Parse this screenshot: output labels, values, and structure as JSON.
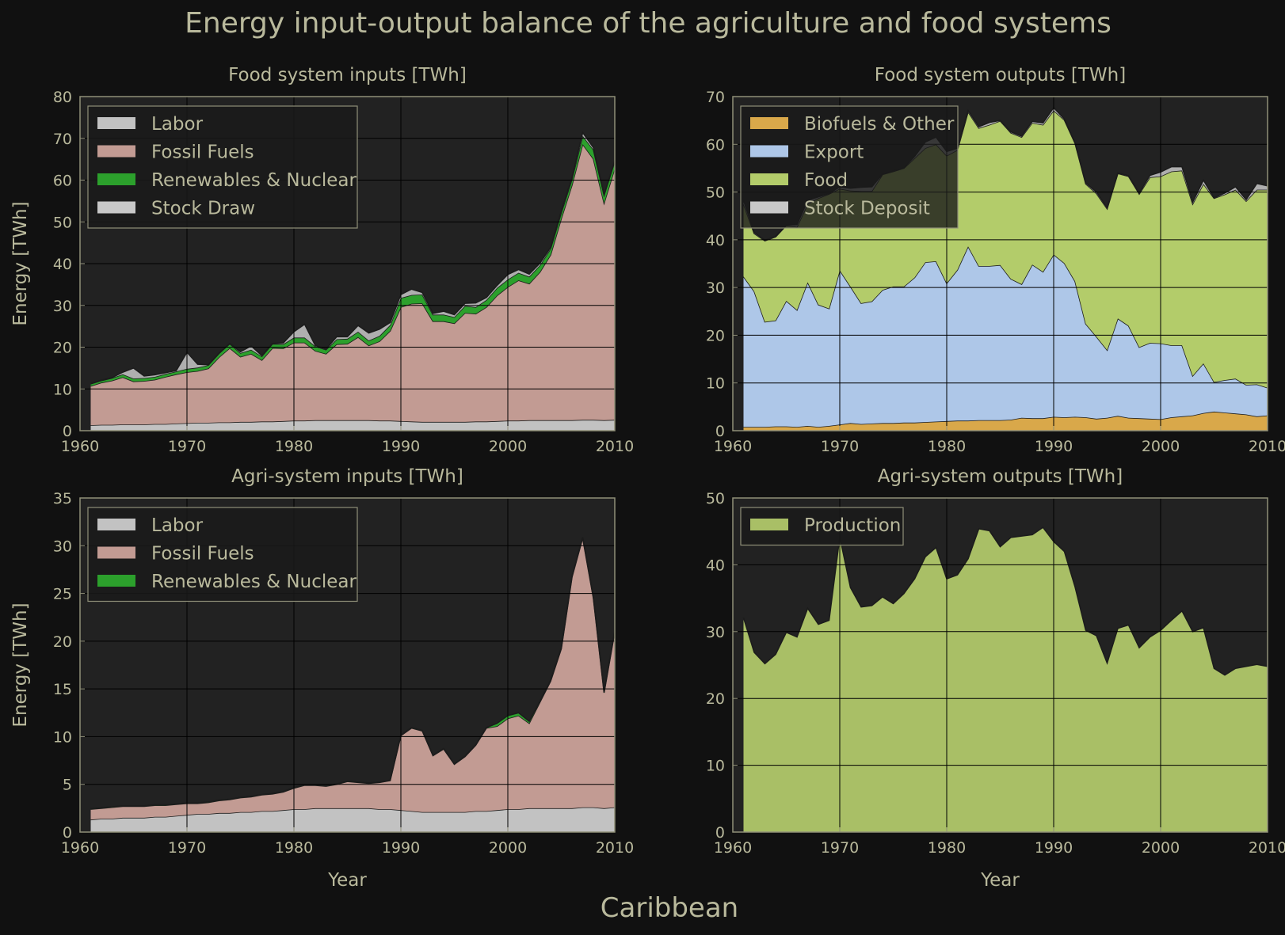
{
  "figure": {
    "title": "Energy input-output balance of the agriculture and food systems",
    "region": "Caribbean"
  },
  "colors": {
    "background": "#111111",
    "plot_bg": "#222222",
    "text": "#b9b99c",
    "spine": "#8f8f78",
    "Labor": "#c2c2c2",
    "Fossil Fuels": "#c29b93",
    "Renewables & Nuclear": "#2ca02c",
    "Stock Draw": "#c8c8c8",
    "Biofuels & Other": "#d9a84a",
    "Export": "#aec7e8",
    "Food": "#b3cc6a",
    "Stock Deposit": "#c8c8c8",
    "Production": "#a9bf66"
  },
  "chart_data": [
    {
      "type": "area",
      "title": "Food system inputs [TWh]",
      "xlabel": "",
      "ylabel": "Energy [TWh]",
      "xlim": [
        1960,
        2010
      ],
      "ylim": [
        0,
        80
      ],
      "yticks": [
        0,
        10,
        20,
        30,
        40,
        50,
        60,
        70,
        80
      ],
      "xticks": [
        1960,
        1970,
        1980,
        1990,
        2000,
        2010
      ],
      "grid": true,
      "stacked": true,
      "legend": "top-left",
      "x": [
        1961,
        1962,
        1963,
        1964,
        1965,
        1966,
        1967,
        1968,
        1969,
        1970,
        1971,
        1972,
        1973,
        1974,
        1975,
        1976,
        1977,
        1978,
        1979,
        1980,
        1981,
        1982,
        1983,
        1984,
        1985,
        1986,
        1987,
        1988,
        1989,
        1990,
        1991,
        1992,
        1993,
        1994,
        1995,
        1996,
        1997,
        1998,
        1999,
        2000,
        2001,
        2002,
        2003,
        2004,
        2005,
        2006,
        2007,
        2008,
        2009,
        2010
      ],
      "series": [
        {
          "name": "Labor",
          "values": [
            1.3,
            1.4,
            1.4,
            1.5,
            1.5,
            1.5,
            1.6,
            1.6,
            1.7,
            1.8,
            1.9,
            1.9,
            2.0,
            2.0,
            2.1,
            2.1,
            2.2,
            2.2,
            2.3,
            2.4,
            2.4,
            2.5,
            2.5,
            2.5,
            2.5,
            2.5,
            2.5,
            2.4,
            2.4,
            2.3,
            2.2,
            2.1,
            2.1,
            2.1,
            2.1,
            2.1,
            2.2,
            2.2,
            2.3,
            2.4,
            2.4,
            2.5,
            2.5,
            2.5,
            2.5,
            2.5,
            2.6,
            2.6,
            2.5,
            2.6
          ]
        },
        {
          "name": "Fossil Fuels",
          "values": [
            9.4,
            10.1,
            10.6,
            11.3,
            10.3,
            10.4,
            10.6,
            11.3,
            11.8,
            12.2,
            12.4,
            13.0,
            15.6,
            17.8,
            15.6,
            16.3,
            14.7,
            17.6,
            17.4,
            18.7,
            18.7,
            16.6,
            15.9,
            18.2,
            18.3,
            19.9,
            17.9,
            19.0,
            21.5,
            27.3,
            28.2,
            28.4,
            24.1,
            24.1,
            23.6,
            26.1,
            25.8,
            27.4,
            30.1,
            32.0,
            33.6,
            32.7,
            35.5,
            39.6,
            48.3,
            56.3,
            66.0,
            62.5,
            52.0,
            60.2
          ]
        },
        {
          "name": "Renewables & Nuclear",
          "values": [
            0.5,
            0.5,
            0.6,
            0.7,
            0.7,
            0.7,
            0.7,
            0.7,
            0.7,
            0.8,
            0.8,
            0.8,
            0.9,
            1.0,
            0.9,
            1.0,
            0.9,
            1.0,
            1.0,
            1.2,
            1.2,
            1.1,
            1.0,
            1.2,
            1.2,
            1.3,
            1.2,
            1.3,
            1.4,
            2.2,
            2.1,
            2.1,
            1.6,
            1.6,
            1.5,
            1.7,
            1.6,
            1.7,
            1.8,
            1.8,
            1.8,
            1.7,
            1.6,
            1.5,
            1.4,
            1.4,
            2.0,
            2.2,
            1.9,
            1.7
          ]
        },
        {
          "name": "Stock Draw",
          "values": [
            0.1,
            0.1,
            0.1,
            0.5,
            2.5,
            0.5,
            0.5,
            0.3,
            0.2,
            4.0,
            0.8,
            0.1,
            0.1,
            0.1,
            0.3,
            0.9,
            0.2,
            0.1,
            0.3,
            1.4,
            3.2,
            0.2,
            0.1,
            0.6,
            0.5,
            1.5,
            1.8,
            1.6,
            0.6,
            0.8,
            1.4,
            0.5,
            0.3,
            0.8,
            0.6,
            0.6,
            1.0,
            0.6,
            0.6,
            1.2,
            0.8,
            0.6,
            0.5,
            0.3,
            0.4,
            0.4,
            0.8,
            0.5,
            0.1,
            0.1
          ]
        }
      ]
    },
    {
      "type": "area",
      "title": "Food system outputs [TWh]",
      "xlabel": "",
      "ylabel": "",
      "xlim": [
        1960,
        2010
      ],
      "ylim": [
        0,
        70
      ],
      "yticks": [
        0,
        10,
        20,
        30,
        40,
        50,
        60,
        70
      ],
      "xticks": [
        1960,
        1970,
        1980,
        1990,
        2000,
        2010
      ],
      "grid": true,
      "stacked": true,
      "legend": "top-left",
      "x": [
        1961,
        1962,
        1963,
        1964,
        1965,
        1966,
        1967,
        1968,
        1969,
        1970,
        1971,
        1972,
        1973,
        1974,
        1975,
        1976,
        1977,
        1978,
        1979,
        1980,
        1981,
        1982,
        1983,
        1984,
        1985,
        1986,
        1987,
        1988,
        1989,
        1990,
        1991,
        1992,
        1993,
        1994,
        1995,
        1996,
        1997,
        1998,
        1999,
        2000,
        2001,
        2002,
        2003,
        2004,
        2005,
        2006,
        2007,
        2008,
        2009,
        2010
      ],
      "series": [
        {
          "name": "Biofuels & Other",
          "values": [
            0.8,
            0.8,
            0.8,
            0.9,
            0.9,
            0.8,
            1.0,
            0.8,
            1.0,
            1.3,
            1.6,
            1.4,
            1.5,
            1.6,
            1.6,
            1.7,
            1.7,
            1.8,
            1.9,
            2.0,
            2.1,
            2.1,
            2.2,
            2.2,
            2.2,
            2.3,
            2.7,
            2.6,
            2.6,
            2.9,
            2.8,
            2.9,
            2.8,
            2.5,
            2.7,
            3.1,
            2.7,
            2.6,
            2.5,
            2.4,
            2.8,
            3.0,
            3.2,
            3.7,
            4.0,
            3.8,
            3.6,
            3.4,
            3.0,
            3.2
          ]
        },
        {
          "name": "Export",
          "values": [
            31.5,
            28.4,
            22.0,
            22.2,
            26.3,
            24.5,
            30.1,
            25.6,
            24.6,
            32.3,
            28.6,
            25.3,
            25.6,
            27.9,
            28.6,
            28.5,
            30.4,
            33.5,
            33.6,
            28.9,
            31.6,
            36.5,
            32.3,
            32.3,
            32.5,
            29.5,
            28.0,
            32.2,
            30.7,
            34.0,
            32.3,
            28.4,
            19.6,
            17.2,
            14.2,
            20.4,
            19.3,
            14.9,
            15.9,
            15.9,
            15.1,
            14.9,
            8.3,
            10.4,
            6.2,
            6.8,
            7.3,
            6.2,
            6.7,
            5.8
          ]
        },
        {
          "name": "Food",
          "values": [
            15.2,
            12.1,
            17.0,
            17.5,
            15.8,
            17.4,
            16.4,
            22.3,
            24.0,
            17.1,
            20.1,
            23.5,
            23.1,
            24.2,
            24.1,
            24.8,
            25.0,
            23.9,
            24.5,
            26.7,
            25.1,
            28.2,
            28.9,
            29.6,
            30.2,
            30.6,
            30.8,
            29.7,
            30.8,
            30.2,
            30.0,
            28.9,
            29.3,
            30.0,
            29.6,
            30.4,
            31.3,
            32.1,
            34.7,
            35.0,
            36.4,
            36.6,
            36.0,
            37.6,
            38.5,
            38.9,
            39.6,
            38.5,
            40.8,
            41.5
          ]
        },
        {
          "name": "Stock Deposit",
          "values": [
            0.8,
            0.2,
            0.1,
            0.1,
            0.1,
            0.5,
            0.8,
            0.3,
            0.1,
            0.4,
            0.5,
            0.8,
            0.9,
            0.1,
            0.1,
            0.1,
            0.4,
            1.3,
            1.5,
            0.9,
            0.4,
            0.3,
            0.3,
            0.5,
            0.1,
            0.2,
            0.2,
            0.3,
            0.4,
            0.6,
            0.2,
            0.1,
            0.2,
            0.3,
            0.2,
            0.1,
            0.1,
            0.2,
            0.4,
            0.9,
            1.0,
            0.8,
            0.4,
            0.8,
            0.1,
            0.3,
            0.6,
            0.3,
            1.3,
            0.8
          ]
        }
      ]
    },
    {
      "type": "area",
      "title": "Agri-system inputs [TWh]",
      "xlabel": "Year",
      "ylabel": "Energy [TWh]",
      "xlim": [
        1960,
        2010
      ],
      "ylim": [
        0,
        35
      ],
      "yticks": [
        0,
        5,
        10,
        15,
        20,
        25,
        30,
        35
      ],
      "xticks": [
        1960,
        1970,
        1980,
        1990,
        2000,
        2010
      ],
      "grid": true,
      "stacked": true,
      "legend": "top-left",
      "x": [
        1961,
        1962,
        1963,
        1964,
        1965,
        1966,
        1967,
        1968,
        1969,
        1970,
        1971,
        1972,
        1973,
        1974,
        1975,
        1976,
        1977,
        1978,
        1979,
        1980,
        1981,
        1982,
        1983,
        1984,
        1985,
        1986,
        1987,
        1988,
        1989,
        1990,
        1991,
        1992,
        1993,
        1994,
        1995,
        1996,
        1997,
        1998,
        1999,
        2000,
        2001,
        2002,
        2003,
        2004,
        2005,
        2006,
        2007,
        2008,
        2009,
        2010
      ],
      "series": [
        {
          "name": "Labor",
          "values": [
            1.3,
            1.4,
            1.4,
            1.5,
            1.5,
            1.5,
            1.6,
            1.6,
            1.7,
            1.8,
            1.9,
            1.9,
            2.0,
            2.0,
            2.1,
            2.1,
            2.2,
            2.2,
            2.3,
            2.4,
            2.4,
            2.5,
            2.5,
            2.5,
            2.5,
            2.5,
            2.5,
            2.4,
            2.4,
            2.3,
            2.2,
            2.1,
            2.1,
            2.1,
            2.1,
            2.1,
            2.2,
            2.2,
            2.3,
            2.4,
            2.4,
            2.5,
            2.5,
            2.5,
            2.5,
            2.5,
            2.6,
            2.6,
            2.5,
            2.6
          ]
        },
        {
          "name": "Fossil Fuels",
          "values": [
            1.1,
            1.1,
            1.2,
            1.2,
            1.2,
            1.2,
            1.2,
            1.2,
            1.2,
            1.2,
            1.1,
            1.2,
            1.3,
            1.4,
            1.5,
            1.6,
            1.7,
            1.8,
            1.9,
            2.2,
            2.5,
            2.4,
            2.3,
            2.5,
            2.8,
            2.7,
            2.6,
            2.8,
            3.0,
            7.8,
            8.7,
            8.5,
            5.9,
            6.6,
            5.0,
            5.8,
            6.9,
            8.7,
            8.8,
            9.5,
            9.8,
            8.9,
            11.1,
            13.3,
            16.7,
            24.2,
            28.2,
            21.9,
            12.1,
            18.4
          ]
        },
        {
          "name": "Renewables & Nuclear",
          "values": [
            0.05,
            0.05,
            0.05,
            0.05,
            0.05,
            0.05,
            0.05,
            0.05,
            0.05,
            0.05,
            0.05,
            0.05,
            0.05,
            0.05,
            0.05,
            0.05,
            0.05,
            0.05,
            0.05,
            0.05,
            0.05,
            0.05,
            0.05,
            0.05,
            0.05,
            0.05,
            0.05,
            0.05,
            0.05,
            0.05,
            0.05,
            0.05,
            0.05,
            0.05,
            0.05,
            0.05,
            0.05,
            0.05,
            0.3,
            0.3,
            0.3,
            0.2,
            0.1,
            0.1,
            0.1,
            0.1,
            0.1,
            0.1,
            0.1,
            0.1
          ]
        }
      ]
    },
    {
      "type": "area",
      "title": "Agri-system outputs [TWh]",
      "xlabel": "Year",
      "ylabel": "",
      "xlim": [
        1960,
        2010
      ],
      "ylim": [
        0,
        50
      ],
      "yticks": [
        0,
        10,
        20,
        30,
        40,
        50
      ],
      "xticks": [
        1960,
        1970,
        1980,
        1990,
        2000,
        2010
      ],
      "grid": true,
      "stacked": true,
      "legend": "top-left",
      "x": [
        1961,
        1962,
        1963,
        1964,
        1965,
        1966,
        1967,
        1968,
        1969,
        1970,
        1971,
        1972,
        1973,
        1974,
        1975,
        1976,
        1977,
        1978,
        1979,
        1980,
        1981,
        1982,
        1983,
        1984,
        1985,
        1986,
        1987,
        1988,
        1989,
        1990,
        1991,
        1992,
        1993,
        1994,
        1995,
        1996,
        1997,
        1998,
        1999,
        2000,
        2001,
        2002,
        2003,
        2004,
        2005,
        2006,
        2007,
        2008,
        2009,
        2010
      ],
      "series": [
        {
          "name": "Production",
          "values": [
            32.1,
            26.9,
            25.2,
            26.6,
            29.9,
            29.2,
            33.5,
            31.1,
            31.7,
            44.2,
            36.6,
            33.7,
            33.9,
            35.2,
            34.2,
            35.7,
            37.9,
            41.2,
            42.6,
            37.9,
            38.5,
            40.9,
            45.4,
            45.1,
            42.7,
            44.1,
            44.3,
            44.5,
            45.6,
            43.5,
            42.0,
            36.7,
            30.2,
            29.4,
            25.3,
            30.5,
            31.0,
            27.6,
            29.2,
            30.2,
            31.7,
            33.1,
            30.0,
            30.6,
            24.5,
            23.5,
            24.5,
            24.8,
            25.1,
            24.8
          ]
        }
      ]
    }
  ]
}
